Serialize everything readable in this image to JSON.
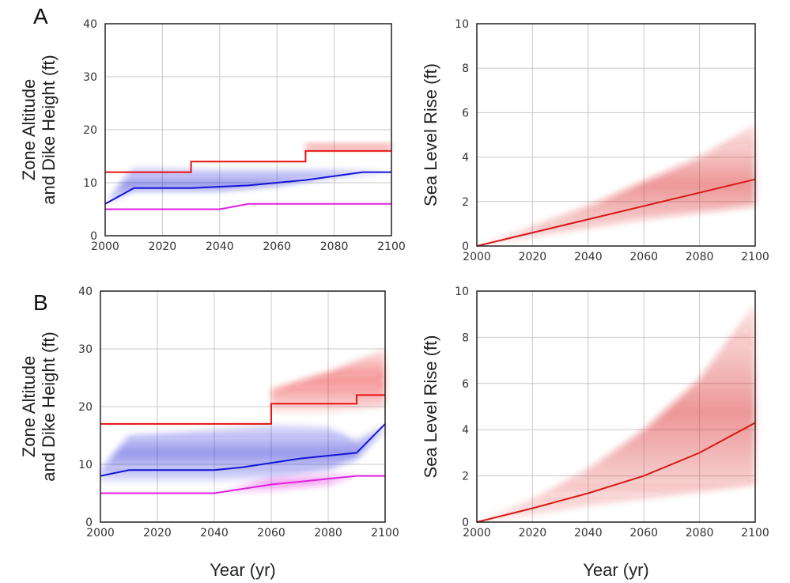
{
  "panel_labels": [
    "A",
    "B"
  ],
  "colors": {
    "dike_height": "#e81010",
    "zone_altitude": "#1414d8",
    "zone_band": "#3c46e6",
    "lower_line": "#e020e0",
    "slr": "#d81818",
    "grid": "#c8c8c8"
  },
  "chart_data": [
    {
      "id": "A-left",
      "panel": "A",
      "type": "line",
      "xlabel": "",
      "ylabel": "Zone Altitude and Dike Height (ft)",
      "xlim": [
        2000,
        2100
      ],
      "ylim": [
        0,
        40
      ],
      "xticks": [
        2000,
        2020,
        2040,
        2060,
        2080,
        2100
      ],
      "yticks": [
        0,
        10,
        20,
        30,
        40
      ],
      "grid": true,
      "series": [
        {
          "color": "#e81010",
          "style": "step",
          "x": [
            2000,
            2030,
            2030,
            2070,
            2070,
            2100
          ],
          "y": [
            12,
            12,
            14,
            14,
            16,
            16
          ],
          "band": [
            [
              2070,
              16,
              17.5
            ],
            [
              2100,
              16,
              17.5
            ]
          ]
        },
        {
          "color": "#1414d8",
          "style": "line",
          "x": [
            2000,
            2010,
            2030,
            2050,
            2070,
            2090,
            2100
          ],
          "y": [
            6,
            9,
            9,
            9.5,
            10.5,
            12,
            12
          ],
          "band": [
            [
              2000,
              6,
              6
            ],
            [
              2010,
              8.5,
              13
            ],
            [
              2040,
              8.5,
              12.5
            ],
            [
              2060,
              9.5,
              12.5
            ],
            [
              2080,
              11,
              12.5
            ],
            [
              2100,
              12,
              12
            ]
          ]
        },
        {
          "color": "#e020e0",
          "style": "line",
          "x": [
            2000,
            2040,
            2050,
            2100
          ],
          "y": [
            5,
            5,
            6,
            6
          ]
        }
      ]
    },
    {
      "id": "A-right",
      "panel": "A",
      "type": "line",
      "xlabel": "",
      "ylabel": "Sea Level Rise (ft)",
      "xlim": [
        2000,
        2100
      ],
      "ylim": [
        0,
        10
      ],
      "xticks": [
        2000,
        2020,
        2040,
        2060,
        2080,
        2100
      ],
      "yticks": [
        0,
        2,
        4,
        6,
        8,
        10
      ],
      "grid": true,
      "series": [
        {
          "color": "#d81818",
          "style": "line",
          "x": [
            2000,
            2020,
            2040,
            2060,
            2080,
            2100
          ],
          "y": [
            0,
            0.6,
            1.2,
            1.8,
            2.4,
            3.0
          ],
          "band": [
            [
              2000,
              0,
              0
            ],
            [
              2020,
              0.4,
              0.9
            ],
            [
              2040,
              0.8,
              1.8
            ],
            [
              2060,
              1.2,
              2.9
            ],
            [
              2080,
              1.5,
              4.0
            ],
            [
              2100,
              1.8,
              5.5
            ]
          ]
        }
      ]
    },
    {
      "id": "B-left",
      "panel": "B",
      "type": "line",
      "xlabel": "Year (yr)",
      "ylabel": "Zone Altitude and Dike Height (ft)",
      "xlim": [
        2000,
        2100
      ],
      "ylim": [
        0,
        40
      ],
      "xticks": [
        2000,
        2020,
        2040,
        2060,
        2080,
        2100
      ],
      "yticks": [
        0,
        10,
        20,
        30,
        40
      ],
      "grid": true,
      "series": [
        {
          "color": "#e81010",
          "style": "step",
          "x": [
            2000,
            2060,
            2060,
            2090,
            2090,
            2100
          ],
          "y": [
            17,
            17,
            20.5,
            20.5,
            22,
            22
          ],
          "band": [
            [
              2060,
              19,
              23
            ],
            [
              2080,
              19,
              26
            ],
            [
              2100,
              20,
              30
            ]
          ]
        },
        {
          "color": "#1414d8",
          "style": "line",
          "x": [
            2000,
            2010,
            2040,
            2050,
            2070,
            2090,
            2100
          ],
          "y": [
            8,
            9,
            9,
            9.5,
            11,
            12,
            17
          ],
          "band": [
            [
              2000,
              7,
              9
            ],
            [
              2010,
              7,
              15
            ],
            [
              2040,
              7,
              16
            ],
            [
              2060,
              7.5,
              17
            ],
            [
              2080,
              9,
              16.5
            ],
            [
              2090,
              11,
              14
            ],
            [
              2100,
              16,
              17
            ]
          ]
        },
        {
          "color": "#e020e0",
          "style": "line",
          "x": [
            2000,
            2040,
            2060,
            2080,
            2090,
            2100
          ],
          "y": [
            5,
            5,
            6.5,
            7.5,
            8,
            8
          ],
          "band": [
            [
              2040,
              5,
              5
            ],
            [
              2060,
              5.5,
              7.5
            ],
            [
              2080,
              6.5,
              8.5
            ],
            [
              2090,
              8,
              8
            ]
          ]
        }
      ]
    },
    {
      "id": "B-right",
      "panel": "B",
      "type": "line",
      "xlabel": "Year (yr)",
      "ylabel": "Sea Level Rise (ft)",
      "xlim": [
        2000,
        2100
      ],
      "ylim": [
        0,
        10
      ],
      "xticks": [
        2000,
        2020,
        2040,
        2060,
        2080,
        2100
      ],
      "yticks": [
        0,
        2,
        4,
        6,
        8,
        10
      ],
      "grid": true,
      "series": [
        {
          "color": "#d81818",
          "style": "line",
          "x": [
            2000,
            2020,
            2040,
            2060,
            2080,
            2100
          ],
          "y": [
            0,
            0.6,
            1.25,
            2.0,
            3.0,
            4.3
          ],
          "band": [
            [
              2000,
              0,
              0
            ],
            [
              2020,
              0.3,
              1.0
            ],
            [
              2040,
              0.7,
              2.3
            ],
            [
              2060,
              1.0,
              4.0
            ],
            [
              2080,
              1.3,
              6.2
            ],
            [
              2100,
              1.6,
              9.5
            ]
          ]
        }
      ]
    }
  ]
}
